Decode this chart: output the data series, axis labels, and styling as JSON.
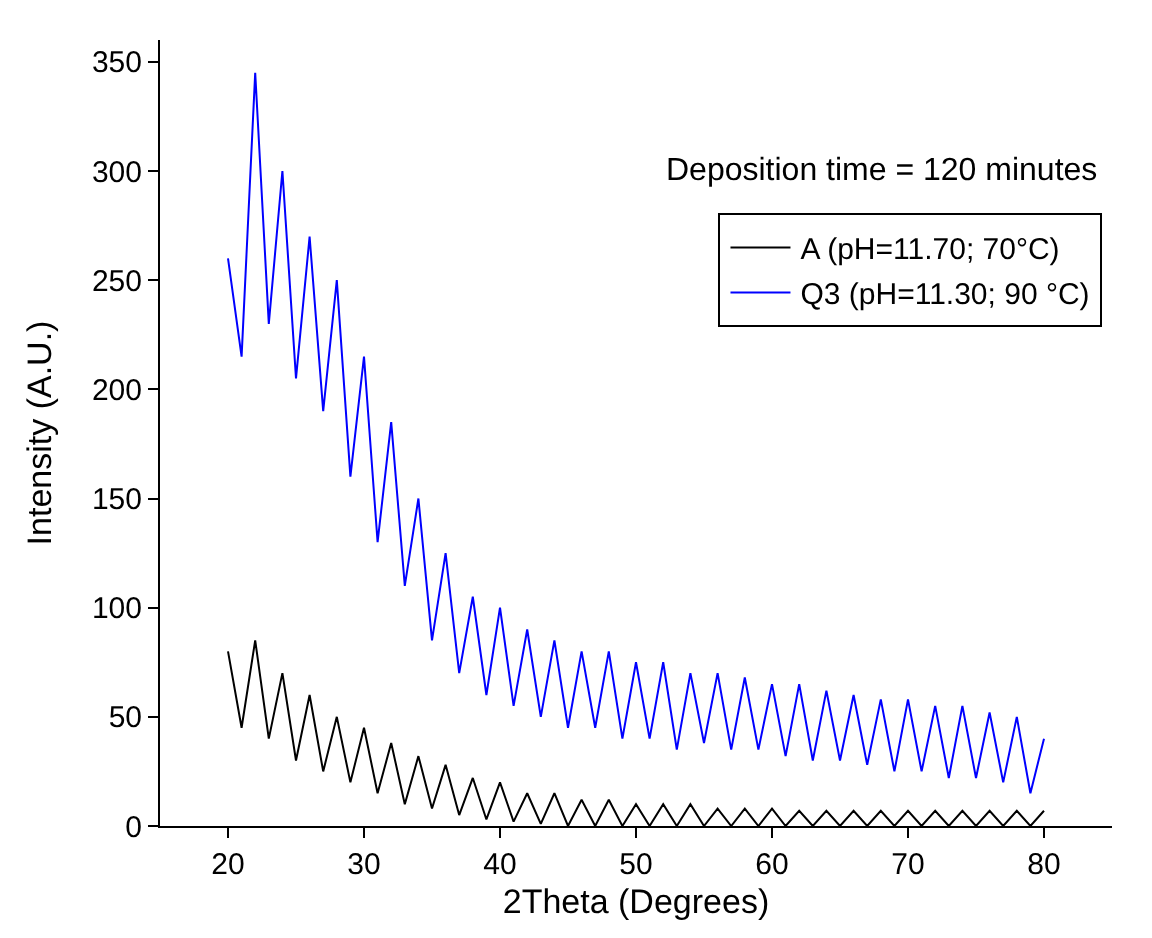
{
  "chart_data": {
    "type": "line",
    "xlabel": "2Theta (Degrees)",
    "ylabel": "Intensity (A.U.)",
    "x": [
      20,
      21,
      22,
      23,
      24,
      25,
      26,
      27,
      28,
      29,
      30,
      31,
      32,
      33,
      34,
      35,
      36,
      37,
      38,
      39,
      40,
      41,
      42,
      43,
      44,
      45,
      46,
      47,
      48,
      49,
      50,
      51,
      52,
      53,
      54,
      55,
      56,
      57,
      58,
      59,
      60,
      61,
      62,
      63,
      64,
      65,
      66,
      67,
      68,
      69,
      70,
      71,
      72,
      73,
      74,
      75,
      76,
      77,
      78,
      79,
      80
    ],
    "series": [
      {
        "name": "A (pH=11.70; 70°C)",
        "color": "#000000",
        "values": [
          80,
          45,
          85,
          40,
          70,
          30,
          60,
          25,
          50,
          20,
          45,
          15,
          38,
          10,
          32,
          8,
          28,
          5,
          22,
          3,
          20,
          2,
          15,
          1,
          15,
          0,
          12,
          0,
          12,
          0,
          10,
          0,
          10,
          0,
          10,
          0,
          8,
          0,
          8,
          0,
          8,
          0,
          7,
          0,
          7,
          0,
          7,
          0,
          7,
          0,
          7,
          0,
          7,
          0,
          7,
          0,
          7,
          0,
          7,
          0,
          7
        ]
      },
      {
        "name": "Q3 (pH=11.30; 90 °C)",
        "color": "#0000ff",
        "values": [
          260,
          215,
          345,
          230,
          300,
          205,
          270,
          190,
          250,
          160,
          215,
          130,
          185,
          110,
          150,
          85,
          125,
          70,
          105,
          60,
          100,
          55,
          90,
          50,
          85,
          45,
          80,
          45,
          80,
          40,
          75,
          40,
          75,
          35,
          70,
          38,
          70,
          35,
          68,
          35,
          65,
          32,
          65,
          30,
          62,
          30,
          60,
          28,
          58,
          25,
          58,
          25,
          55,
          22,
          55,
          22,
          52,
          20,
          50,
          15,
          40
        ]
      }
    ],
    "xlim": [
      15,
      85
    ],
    "xticks": [
      20,
      30,
      40,
      50,
      60,
      70,
      80
    ],
    "ylim": [
      0,
      360
    ],
    "yticks": [
      0,
      50,
      100,
      150,
      200,
      250,
      300,
      350
    ],
    "legend": "top right",
    "line_style": "solid",
    "marker": "none",
    "annotations": [
      "Deposition time = 120 minutes"
    ]
  }
}
